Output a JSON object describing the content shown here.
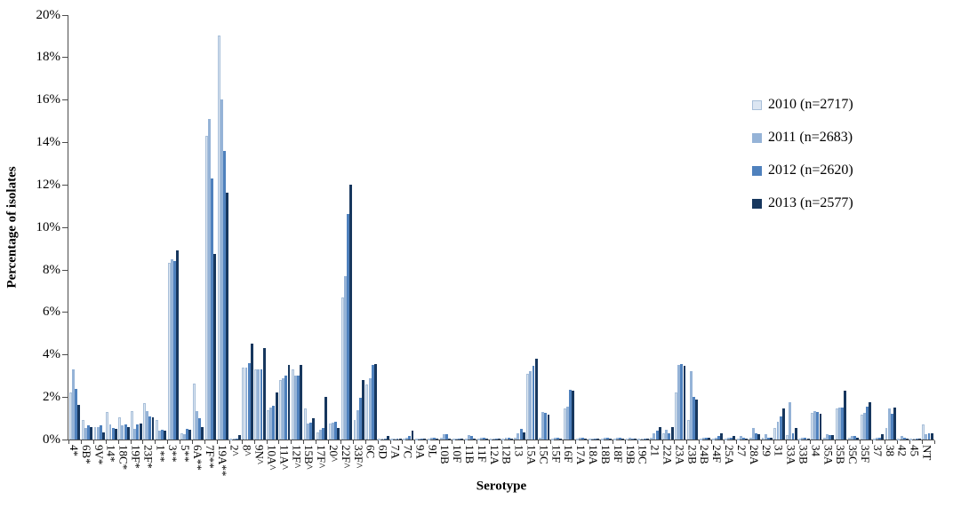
{
  "chart_data": {
    "type": "bar",
    "title": "",
    "xlabel": "Serotype",
    "ylabel": "Percentage of isolates",
    "ylim": [
      0,
      20
    ],
    "ytick_step": 2,
    "ytick_suffix": "%",
    "grid": false,
    "legend_position": "right",
    "categories": [
      "4*",
      "6B*",
      "9V*",
      "14*",
      "18C*",
      "19F*",
      "23F*",
      "1**",
      "3**",
      "5**",
      "6A**",
      "7F**",
      "19A**",
      "2^",
      "8^",
      "9N^",
      "10A^",
      "11A^",
      "12F^",
      "15B^",
      "17F^",
      "20^",
      "22F^",
      "33F^",
      "6C",
      "6D",
      "7A",
      "7C",
      "9A",
      "9L",
      "10B",
      "10F",
      "11B",
      "11F",
      "12A",
      "12B",
      "13",
      "15A",
      "15C",
      "15F",
      "16F",
      "17A",
      "18A",
      "18B",
      "18F",
      "19B",
      "19C",
      "21",
      "22A",
      "23A",
      "23B",
      "24B",
      "24F",
      "25A",
      "27",
      "28A",
      "29",
      "31",
      "33A",
      "33B",
      "34",
      "35A",
      "35B",
      "35C",
      "35F",
      "37",
      "38",
      "42",
      "45",
      "NT"
    ],
    "series": [
      {
        "name": "2010 (n=2717)",
        "color": "#dce6f2",
        "border": "#a8bfd9",
        "values": [
          2.2,
          0.9,
          0.6,
          1.3,
          1.05,
          1.35,
          1.7,
          0.9,
          8.3,
          0.3,
          2.65,
          14.3,
          19.0,
          0.05,
          3.4,
          3.3,
          1.4,
          2.8,
          3.3,
          1.45,
          0.35,
          0.75,
          6.7,
          0.9,
          2.6,
          0.05,
          0.02,
          0.05,
          0.03,
          0.05,
          0.1,
          0.03,
          0.05,
          0.05,
          0.03,
          0.05,
          0.1,
          3.1,
          0.1,
          0.05,
          1.45,
          0.05,
          0.03,
          0.05,
          0.05,
          0.05,
          0.03,
          0.1,
          0.3,
          2.2,
          0.9,
          0.05,
          0.05,
          0.05,
          0.05,
          0.1,
          0.1,
          0.55,
          0.2,
          0.05,
          1.25,
          0.1,
          1.45,
          0.1,
          1.15,
          0.05,
          0.55,
          0.05,
          0.03,
          0.7
        ]
      },
      {
        "name": "2011 (n=2683)",
        "color": "#95b3d7",
        "border": "#95b3d7",
        "values": [
          3.3,
          0.55,
          0.6,
          0.7,
          0.65,
          0.5,
          1.35,
          0.4,
          8.5,
          0.25,
          1.35,
          15.1,
          16.0,
          0.05,
          3.4,
          3.3,
          1.5,
          2.9,
          3.0,
          0.75,
          0.45,
          0.8,
          7.7,
          1.4,
          2.9,
          0.05,
          0.03,
          0.1,
          0.05,
          0.08,
          0.25,
          0.05,
          0.2,
          0.1,
          0.05,
          0.08,
          0.3,
          3.2,
          1.3,
          0.1,
          1.55,
          0.08,
          0.05,
          0.1,
          0.08,
          0.08,
          0.05,
          0.3,
          0.45,
          3.5,
          3.2,
          0.1,
          0.1,
          0.1,
          0.15,
          0.55,
          0.25,
          0.85,
          1.75,
          0.1,
          1.35,
          0.25,
          1.5,
          0.15,
          1.25,
          0.1,
          1.45,
          0.15,
          0.05,
          0.25
        ]
      },
      {
        "name": "2012 (n=2620)",
        "color": "#4f81bd",
        "border": "#4f81bd",
        "values": [
          2.4,
          0.65,
          0.65,
          0.55,
          0.7,
          0.7,
          1.1,
          0.45,
          8.4,
          0.5,
          1.0,
          12.3,
          13.6,
          0.05,
          3.6,
          3.3,
          1.6,
          3.0,
          3.0,
          0.8,
          0.55,
          0.85,
          10.6,
          1.95,
          3.5,
          0.05,
          0.03,
          0.15,
          0.05,
          0.08,
          0.25,
          0.05,
          0.15,
          0.08,
          0.05,
          0.08,
          0.5,
          3.45,
          1.25,
          0.1,
          2.35,
          0.08,
          0.05,
          0.08,
          0.08,
          0.05,
          0.05,
          0.4,
          0.3,
          3.55,
          2.0,
          0.1,
          0.15,
          0.1,
          0.1,
          0.3,
          0.1,
          1.1,
          0.3,
          0.08,
          1.3,
          0.2,
          1.5,
          0.15,
          1.55,
          0.1,
          1.2,
          0.1,
          0.05,
          0.3
        ]
      },
      {
        "name": "2013 (n=2577)",
        "color": "#17375e",
        "border": "#17375e",
        "values": [
          1.65,
          0.6,
          0.35,
          0.5,
          0.6,
          0.75,
          1.05,
          0.4,
          8.9,
          0.45,
          0.6,
          8.75,
          11.6,
          0.2,
          4.5,
          4.3,
          2.2,
          3.5,
          3.5,
          1.0,
          2.0,
          0.55,
          12.0,
          2.8,
          3.55,
          0.15,
          0.02,
          0.4,
          0.03,
          0.05,
          0.05,
          0.03,
          0.05,
          0.05,
          0.05,
          0.05,
          0.35,
          3.8,
          1.15,
          0.05,
          2.3,
          0.05,
          0.03,
          0.05,
          0.05,
          0.05,
          0.03,
          0.6,
          0.6,
          3.45,
          1.9,
          0.1,
          0.3,
          0.15,
          0.05,
          0.25,
          0.1,
          1.45,
          0.55,
          0.05,
          1.2,
          0.2,
          2.3,
          0.1,
          1.75,
          0.25,
          1.5,
          0.05,
          0.03,
          0.3
        ]
      }
    ]
  }
}
